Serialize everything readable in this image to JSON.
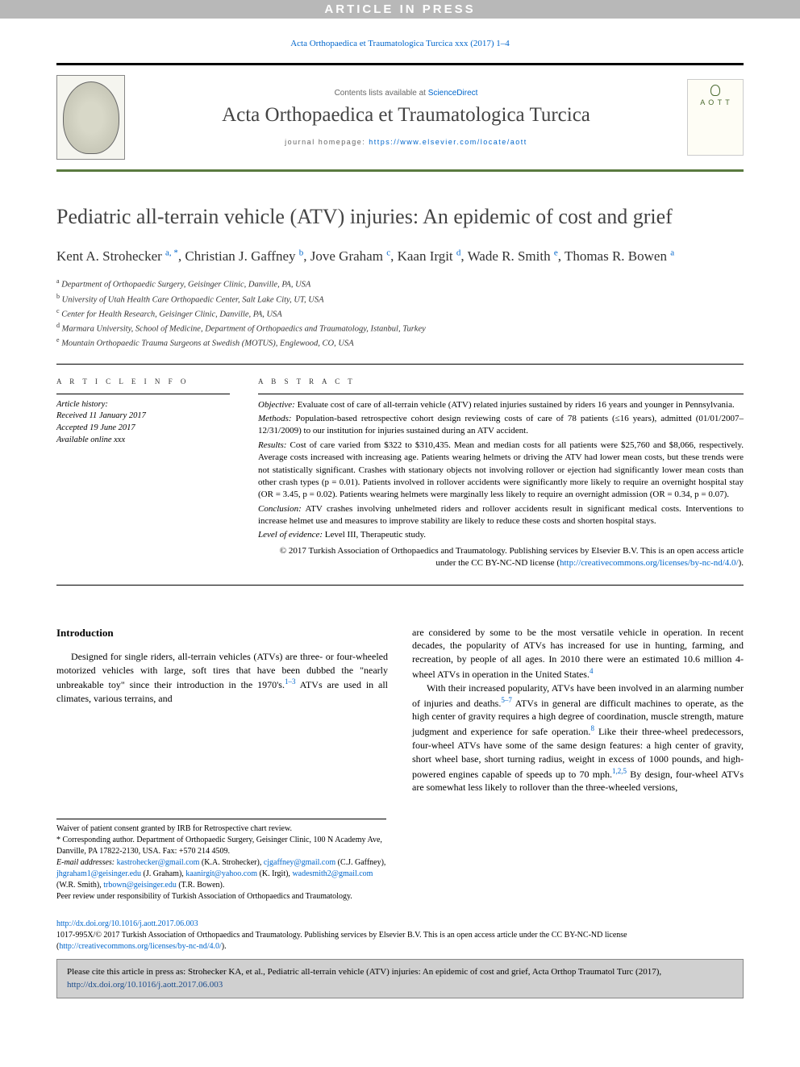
{
  "banner": "ARTICLE IN PRESS",
  "citation_header": "Acta Orthopaedica et Traumatologica Turcica xxx (2017) 1–4",
  "contents_available": "Contents lists available at ",
  "sciencedirect": "ScienceDirect",
  "journal_name": "Acta Orthopaedica et Traumatologica Turcica",
  "homepage_label": "journal homepage: ",
  "homepage_url": "https://www.elsevier.com/locate/aott",
  "cover_abbr": "A O T T",
  "title": "Pediatric all-terrain vehicle (ATV) injuries: An epidemic of cost and grief",
  "authors_html": {
    "a1_name": "Kent A. Strohecker ",
    "a1_sup": "a, *",
    "a2_name": ", Christian J. Gaffney ",
    "a2_sup": "b",
    "a3_name": ", Jove Graham ",
    "a3_sup": "c",
    "a4_name": ", Kaan Irgit ",
    "a4_sup": "d",
    "a5_name": ", Wade R. Smith ",
    "a5_sup": "e",
    "a6_name": ", Thomas R. Bowen ",
    "a6_sup": "a"
  },
  "affiliations": {
    "a": "Department of Orthopaedic Surgery, Geisinger Clinic, Danville, PA, USA",
    "b": "University of Utah Health Care Orthopaedic Center, Salt Lake City, UT, USA",
    "c": "Center for Health Research, Geisinger Clinic, Danville, PA, USA",
    "d": "Marmara University, School of Medicine, Department of Orthopaedics and Traumatology, Istanbul, Turkey",
    "e": "Mountain Orthopaedic Trauma Surgeons at Swedish (MOTUS), Englewood, CO, USA"
  },
  "article_info_header": "A R T I C L E  I N F O",
  "abstract_header": "A B S T R A C T",
  "history": {
    "label": "Article history:",
    "received": "Received 11 January 2017",
    "accepted": "Accepted 19 June 2017",
    "online": "Available online xxx"
  },
  "abstract": {
    "objective_label": "Objective:",
    "objective": " Evaluate cost of care of all-terrain vehicle (ATV) related injuries sustained by riders 16 years and younger in Pennsylvania.",
    "methods_label": "Methods:",
    "methods": " Population-based retrospective cohort design reviewing costs of care of 78 patients (≤16 years), admitted (01/01/2007–12/31/2009) to our institution for injuries sustained during an ATV accident.",
    "results_label": "Results:",
    "results": " Cost of care varied from $322 to $310,435. Mean and median costs for all patients were $25,760 and $8,066, respectively. Average costs increased with increasing age. Patients wearing helmets or driving the ATV had lower mean costs, but these trends were not statistically significant. Crashes with stationary objects not involving rollover or ejection had significantly lower mean costs than other crash types (p = 0.01). Patients involved in rollover accidents were significantly more likely to require an overnight hospital stay (OR = 3.45, p = 0.02). Patients wearing helmets were marginally less likely to require an overnight admission (OR = 0.34, p = 0.07).",
    "conclusion_label": "Conclusion:",
    "conclusion": " ATV crashes involving unhelmeted riders and rollover accidents result in significant medical costs. Interventions to increase helmet use and measures to improve stability are likely to reduce these costs and shorten hospital stays.",
    "loe_label": "Level of evidence:",
    "loe": " Level III, Therapeutic study.",
    "copyright": "© 2017 Turkish Association of Orthopaedics and Traumatology. Publishing services by Elsevier B.V. This is an open access article under the CC BY-NC-ND license (",
    "cc_link": "http://creativecommons.org/licenses/by-nc-nd/4.0/",
    "copyright_close": ")."
  },
  "intro_heading": "Introduction",
  "body": {
    "p1a": "Designed for single riders, all-terrain vehicles (ATVs) are three- or four-wheeled motorized vehicles with large, soft tires that have been dubbed the \"nearly unbreakable toy\" since their introduction in the 1970's.",
    "p1_ref": "1–3",
    "p1b": " ATVs are used in all climates, various terrains, and",
    "p2a": "are considered by some to be the most versatile vehicle in operation. In recent decades, the popularity of ATVs has increased for use in hunting, farming, and recreation, by people of all ages. In 2010 there were an estimated 10.6 million 4-wheel ATVs in operation in the United States.",
    "p2_ref": "4",
    "p3a": "With their increased popularity, ATVs have been involved in an alarming number of injuries and deaths.",
    "p3_ref1": "5–7",
    "p3b": " ATVs in general are difficult machines to operate, as the high center of gravity requires a high degree of coordination, muscle strength, mature judgment and experience for safe operation.",
    "p3_ref2": "8",
    "p3c": " Like their three-wheel predecessors, four-wheel ATVs have some of the same design features: a high center of gravity, short wheel base, short turning radius, weight in excess of 1000 pounds, and high-powered engines capable of speeds up to 70 mph.",
    "p3_ref3": "1,2,5",
    "p3d": " By design, four-wheel ATVs are somewhat less likely to rollover than the three-wheeled versions,"
  },
  "footnotes": {
    "waiver": "Waiver of patient consent granted by IRB for Retrospective chart review.",
    "corr": "* Corresponding author. Department of Orthopaedic Surgery, Geisinger Clinic, 100 N Academy Ave, Danville, PA 17822-2130, USA. Fax: +570 214 4509.",
    "email_label": "E-mail addresses: ",
    "e1": "kastrohecker@gmail.com",
    "e1n": " (K.A. Strohecker), ",
    "e2": "cjgaffney@gmail.com",
    "e2n": " (C.J. Gaffney), ",
    "e3": "jhgraham1@geisinger.edu",
    "e3n": " (J. Graham), ",
    "e4": "kaanirgit@yahoo.com",
    "e4n": " (K. Irgit), ",
    "e5": "wadesmith2@gmail.com",
    "e5n": " (W.R. Smith), ",
    "e6": "trbown@geisinger.edu",
    "e6n": " (T.R. Bowen).",
    "peer": "Peer review under responsibility of Turkish Association of Orthopaedics and Traumatology."
  },
  "doi": {
    "link": "http://dx.doi.org/10.1016/j.aott.2017.06.003",
    "issn": "1017-995X/© 2017 Turkish Association of Orthopaedics and Traumatology. Publishing services by Elsevier B.V. This is an open access article under the CC BY-NC-ND license (",
    "cc": "http://creativecommons.org/licenses/by-nc-nd/4.0/",
    "close": ")."
  },
  "cite_box": {
    "text": "Please cite this article in press as: Strohecker KA, et al., Pediatric all-terrain vehicle (ATV) injuries: An epidemic of cost and grief, Acta Orthop Traumatol Turc (2017), ",
    "link": "http://dx.doi.org/10.1016/j.aott.2017.06.003"
  }
}
